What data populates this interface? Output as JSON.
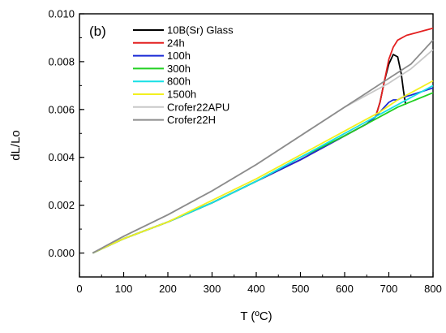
{
  "chart_data": {
    "type": "line",
    "panel_label": "(b)",
    "xlabel": "T (ºC)",
    "ylabel": "dL/Lo",
    "xlim": [
      0,
      800
    ],
    "ylim": [
      -0.001,
      0.01
    ],
    "x_ticks": [
      "0",
      "100",
      "200",
      "300",
      "400",
      "500",
      "600",
      "700",
      "800"
    ],
    "y_ticks": [
      "0.000",
      "0.002",
      "0.004",
      "0.006",
      "0.008",
      "0.010"
    ],
    "grid": false,
    "legend_position": "top-left",
    "series": [
      {
        "name": "10B(Sr) Glass",
        "color": "#000000",
        "points": [
          [
            30,
            0
          ],
          [
            100,
            0.0006
          ],
          [
            200,
            0.0013
          ],
          [
            300,
            0.0021
          ],
          [
            400,
            0.003
          ],
          [
            500,
            0.0039
          ],
          [
            600,
            0.0049
          ],
          [
            650,
            0.0054
          ],
          [
            670,
            0.0057
          ],
          [
            680,
            0.0063
          ],
          [
            690,
            0.0072
          ],
          [
            700,
            0.0079
          ],
          [
            710,
            0.0083
          ],
          [
            720,
            0.0082
          ],
          [
            728,
            0.0075
          ],
          [
            733,
            0.0068
          ],
          [
            738,
            0.0062
          ]
        ]
      },
      {
        "name": "24h",
        "color": "#e32020",
        "points": [
          [
            30,
            0
          ],
          [
            100,
            0.0006
          ],
          [
            200,
            0.0013
          ],
          [
            300,
            0.0021
          ],
          [
            400,
            0.003
          ],
          [
            500,
            0.0039
          ],
          [
            600,
            0.0049
          ],
          [
            650,
            0.0054
          ],
          [
            670,
            0.0057
          ],
          [
            680,
            0.0063
          ],
          [
            690,
            0.0072
          ],
          [
            700,
            0.0081
          ],
          [
            710,
            0.0086
          ],
          [
            720,
            0.0089
          ],
          [
            740,
            0.0091
          ],
          [
            760,
            0.0092
          ],
          [
            780,
            0.0093
          ],
          [
            800,
            0.0094
          ]
        ]
      },
      {
        "name": "100h",
        "color": "#1a2ad6",
        "points": [
          [
            30,
            0
          ],
          [
            100,
            0.0006
          ],
          [
            200,
            0.0013
          ],
          [
            300,
            0.0021
          ],
          [
            400,
            0.003
          ],
          [
            500,
            0.0039
          ],
          [
            600,
            0.0049
          ],
          [
            650,
            0.0054
          ],
          [
            670,
            0.0057
          ],
          [
            685,
            0.006
          ],
          [
            700,
            0.0063
          ],
          [
            710,
            0.0064
          ],
          [
            720,
            0.0064
          ],
          [
            730,
            0.0065
          ],
          [
            750,
            0.0066
          ],
          [
            800,
            0.0069
          ]
        ]
      },
      {
        "name": "300h",
        "color": "#22d022",
        "points": [
          [
            30,
            0
          ],
          [
            100,
            0.0006
          ],
          [
            200,
            0.0013
          ],
          [
            300,
            0.0021
          ],
          [
            400,
            0.003
          ],
          [
            500,
            0.004
          ],
          [
            600,
            0.0049
          ],
          [
            650,
            0.0054
          ],
          [
            680,
            0.0057
          ],
          [
            720,
            0.0061
          ],
          [
            760,
            0.0064
          ],
          [
            800,
            0.0067
          ]
        ]
      },
      {
        "name": "800h",
        "color": "#18e0e6",
        "points": [
          [
            30,
            0
          ],
          [
            100,
            0.0006
          ],
          [
            200,
            0.0013
          ],
          [
            300,
            0.0021
          ],
          [
            400,
            0.003
          ],
          [
            500,
            0.004
          ],
          [
            600,
            0.005
          ],
          [
            650,
            0.0055
          ],
          [
            680,
            0.0058
          ],
          [
            720,
            0.0062
          ],
          [
            760,
            0.0066
          ],
          [
            800,
            0.007
          ]
        ]
      },
      {
        "name": "1500h",
        "color": "#f2f020",
        "points": [
          [
            30,
            0
          ],
          [
            100,
            0.0006
          ],
          [
            200,
            0.0013
          ],
          [
            300,
            0.0022
          ],
          [
            400,
            0.0031
          ],
          [
            500,
            0.0041
          ],
          [
            600,
            0.0051
          ],
          [
            650,
            0.0056
          ],
          [
            680,
            0.0059
          ],
          [
            720,
            0.0064
          ],
          [
            760,
            0.0068
          ],
          [
            800,
            0.0072
          ]
        ]
      },
      {
        "name": "Crofer22APU",
        "color": "#c8c8c8",
        "points": [
          [
            30,
            0
          ],
          [
            100,
            0.0007
          ],
          [
            200,
            0.0016
          ],
          [
            300,
            0.0026
          ],
          [
            400,
            0.0037
          ],
          [
            500,
            0.0049
          ],
          [
            600,
            0.0061
          ],
          [
            650,
            0.0066
          ],
          [
            700,
            0.0071
          ],
          [
            750,
            0.0077
          ],
          [
            800,
            0.0085
          ]
        ]
      },
      {
        "name": "Crofer22H",
        "color": "#8c8c8c",
        "points": [
          [
            30,
            0
          ],
          [
            100,
            0.0007
          ],
          [
            200,
            0.0016
          ],
          [
            300,
            0.0026
          ],
          [
            400,
            0.0037
          ],
          [
            500,
            0.0049
          ],
          [
            600,
            0.0061
          ],
          [
            650,
            0.0067
          ],
          [
            700,
            0.0073
          ],
          [
            750,
            0.0079
          ],
          [
            800,
            0.0089
          ]
        ]
      }
    ]
  }
}
